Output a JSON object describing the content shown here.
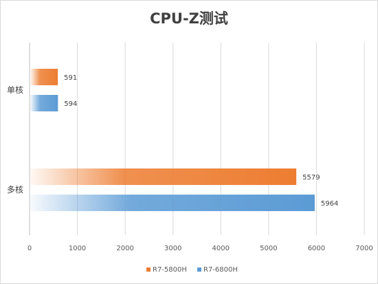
{
  "chart_data": {
    "type": "bar",
    "orientation": "horizontal",
    "title": "CPU-Z测试",
    "categories": [
      "单核",
      "多核"
    ],
    "series": [
      {
        "name": "R7-5800H",
        "values": [
          591,
          5579
        ],
        "color": "#ed7d31"
      },
      {
        "name": "R7-6800H",
        "values": [
          594,
          5964
        ],
        "color": "#5b9bd5"
      }
    ],
    "xlim": [
      0,
      7000
    ],
    "xticks": [
      0,
      1000,
      2000,
      3000,
      4000,
      5000,
      6000,
      7000
    ],
    "grid": true,
    "legend": "bottom",
    "data_labels": true
  }
}
